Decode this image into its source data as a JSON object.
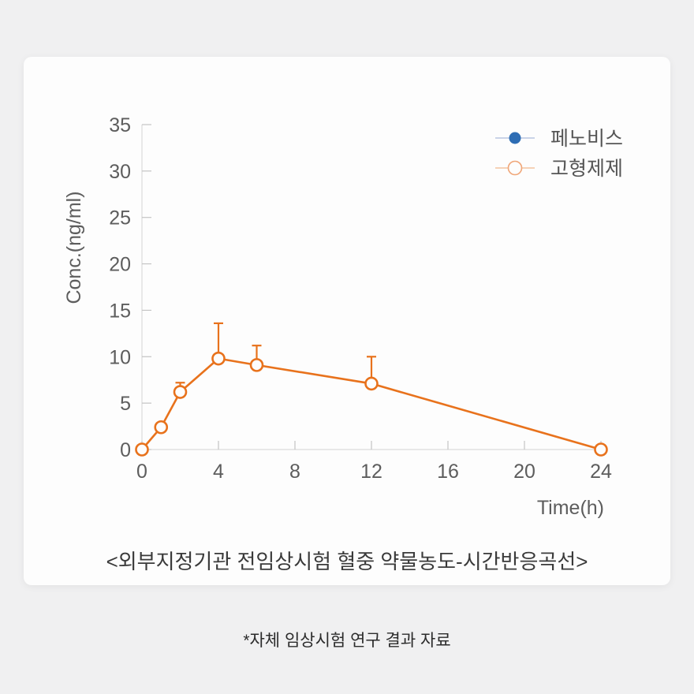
{
  "page": {
    "footer_note": "*자체 임상시험 연구 결과 자료"
  },
  "card": {
    "caption": "<외부지정기관 전임상시험 혈중 약물농도-시간반응곡선>"
  },
  "colors": {
    "background": "#f0f0f1",
    "card_background": "#fdfdfd",
    "axis": "#d2d2d2",
    "tick": "#c4c4c4",
    "axis_text": "#5d5d5d",
    "legend_text": "#555555",
    "series_blue": "#2e6db4",
    "series_blue_line": "#b9c7e2",
    "series_orange": "#e8721c",
    "series_orange_legend": "#f0a678",
    "series_orange_legend_line": "#f4c3a0"
  },
  "chart_data": {
    "type": "line",
    "title": "",
    "xlabel": "Time(h)",
    "ylabel": "Conc.(ng/ml)",
    "xlim": [
      0,
      24
    ],
    "ylim": [
      0,
      35
    ],
    "xticks": [
      0,
      4,
      8,
      12,
      16,
      20,
      24
    ],
    "yticks": [
      0,
      5,
      10,
      15,
      20,
      25,
      30,
      35
    ],
    "grid": false,
    "legend_position": "top-right",
    "series": [
      {
        "name": "페노비스",
        "marker": "filled-circle",
        "color": "#2e6db4",
        "legend_line_color": "#b9c7e2",
        "x": [],
        "values": []
      },
      {
        "name": "고형제제",
        "marker": "open-circle",
        "color": "#e8721c",
        "legend_marker_color": "#f0a678",
        "legend_line_color": "#f4c3a0",
        "x": [
          0,
          1,
          2,
          4,
          6,
          12,
          24
        ],
        "values": [
          0,
          2.4,
          6.2,
          9.8,
          9.1,
          7.1,
          0
        ],
        "error_up": [
          0,
          0,
          1.0,
          3.8,
          2.1,
          2.9,
          0
        ]
      }
    ]
  }
}
